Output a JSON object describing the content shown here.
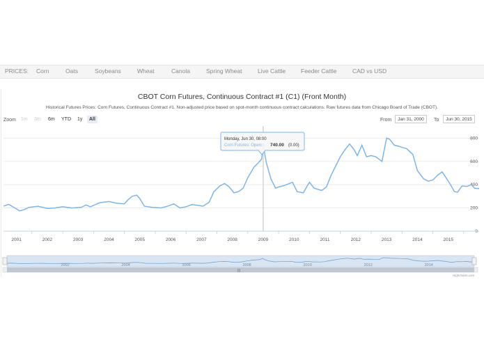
{
  "nav": {
    "prefix": "PRICES:",
    "items": [
      "Corn",
      "Oats",
      "Soybeans",
      "Wheat",
      "Canola",
      "Spring Wheat",
      "Live Cattle",
      "Feeder Cattle",
      "CAD vs USD"
    ]
  },
  "chart": {
    "title": "CBOT Corn Futures, Continuous Contract #1 (C1) (Front Month)",
    "subtitle": "Historical Futures Prices: Corn Futures, Continuous Contract #1. Non-adjusted price based on spot-month continuous contract calculations. Raw futures data from Chicago Board of Trade (CBOT).",
    "zoom_label": "Zoom",
    "zoom_buttons": [
      "1m",
      "3m",
      "6m",
      "YTD",
      "1y",
      "All"
    ],
    "from_label": "From",
    "from_value": "Jan 31, 2000",
    "to_label": "To",
    "to_value": "Jun 30, 2015",
    "tooltip": {
      "date": "Monday, Jun 30, 08:00",
      "series_label": "Corn Futures: Open:",
      "value": "740.00",
      "change": "(0.00)"
    },
    "credits": "Highcharts.com"
  },
  "colors": {
    "line": "#7cb5ec",
    "navigator_fill": "#d9e5f3",
    "grid": "#e6e6e6"
  },
  "chart_data": {
    "type": "line",
    "series": [
      {
        "name": "Corn Futures: Open",
        "x_unit": "year",
        "points": [
          [
            2000.08,
            215
          ],
          [
            2000.25,
            230
          ],
          [
            2000.45,
            200
          ],
          [
            2000.6,
            175
          ],
          [
            2000.75,
            185
          ],
          [
            2000.9,
            205
          ],
          [
            2001.2,
            215
          ],
          [
            2001.5,
            195
          ],
          [
            2001.75,
            200
          ],
          [
            2002.0,
            210
          ],
          [
            2002.3,
            200
          ],
          [
            2002.6,
            205
          ],
          [
            2002.75,
            225
          ],
          [
            2002.9,
            210
          ],
          [
            2003.2,
            245
          ],
          [
            2003.5,
            255
          ],
          [
            2003.75,
            240
          ],
          [
            2004.0,
            235
          ],
          [
            2004.1,
            265
          ],
          [
            2004.25,
            300
          ],
          [
            2004.4,
            310
          ],
          [
            2004.5,
            280
          ],
          [
            2004.65,
            215
          ],
          [
            2004.9,
            205
          ],
          [
            2005.2,
            200
          ],
          [
            2005.45,
            220
          ],
          [
            2005.6,
            235
          ],
          [
            2005.8,
            200
          ],
          [
            2006.0,
            210
          ],
          [
            2006.2,
            230
          ],
          [
            2006.3,
            225
          ],
          [
            2006.55,
            215
          ],
          [
            2006.75,
            250
          ],
          [
            2006.9,
            340
          ],
          [
            2007.1,
            390
          ],
          [
            2007.25,
            410
          ],
          [
            2007.4,
            380
          ],
          [
            2007.55,
            330
          ],
          [
            2007.7,
            340
          ],
          [
            2007.85,
            370
          ],
          [
            2008.0,
            460
          ],
          [
            2008.2,
            550
          ],
          [
            2008.35,
            590
          ],
          [
            2008.45,
            620
          ],
          [
            2008.5,
            740
          ],
          [
            2008.6,
            590
          ],
          [
            2008.75,
            450
          ],
          [
            2008.9,
            370
          ],
          [
            2009.0,
            380
          ],
          [
            2009.15,
            390
          ],
          [
            2009.45,
            420
          ],
          [
            2009.6,
            340
          ],
          [
            2009.8,
            330
          ],
          [
            2009.95,
            400
          ],
          [
            2010.0,
            420
          ],
          [
            2010.15,
            370
          ],
          [
            2010.4,
            350
          ],
          [
            2010.55,
            380
          ],
          [
            2010.7,
            480
          ],
          [
            2010.85,
            560
          ],
          [
            2011.0,
            640
          ],
          [
            2011.15,
            700
          ],
          [
            2011.3,
            750
          ],
          [
            2011.45,
            700
          ],
          [
            2011.55,
            650
          ],
          [
            2011.7,
            740
          ],
          [
            2011.85,
            640
          ],
          [
            2012.0,
            650
          ],
          [
            2012.15,
            640
          ],
          [
            2012.35,
            600
          ],
          [
            2012.5,
            800
          ],
          [
            2012.6,
            790
          ],
          [
            2012.75,
            740
          ],
          [
            2012.9,
            730
          ],
          [
            2013.0,
            720
          ],
          [
            2013.15,
            710
          ],
          [
            2013.35,
            660
          ],
          [
            2013.5,
            520
          ],
          [
            2013.7,
            450
          ],
          [
            2013.85,
            430
          ],
          [
            2014.0,
            440
          ],
          [
            2014.15,
            480
          ],
          [
            2014.3,
            510
          ],
          [
            2014.45,
            450
          ],
          [
            2014.55,
            410
          ],
          [
            2014.7,
            340
          ],
          [
            2014.8,
            335
          ],
          [
            2014.95,
            390
          ],
          [
            2015.1,
            385
          ],
          [
            2015.25,
            400
          ],
          [
            2015.35,
            370
          ],
          [
            2015.5,
            365
          ]
        ]
      }
    ],
    "xlim": [
      2000.08,
      2015.5
    ],
    "ylim": [
      0,
      880
    ],
    "y_ticks": [
      0,
      200,
      400,
      600,
      800
    ],
    "x_ticks": [
      2001,
      2002,
      2003,
      2004,
      2005,
      2006,
      2007,
      2008,
      2009,
      2010,
      2011,
      2012,
      2013,
      2014,
      2015
    ],
    "navigator_ticks": [
      2002,
      2004,
      2006,
      2008,
      2010,
      2012,
      2014
    ],
    "tooltip_x": 2008.5,
    "tooltip_y": 740,
    "grid": true
  }
}
